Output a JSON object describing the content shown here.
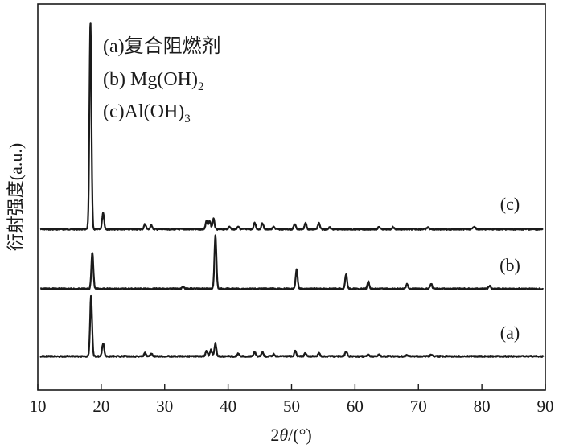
{
  "chart_data": {
    "type": "line",
    "xlabel": {
      "prefix": "2",
      "italic": "θ",
      "suffix": "/(°)"
    },
    "ylabel": "衍射强度(a.u.)",
    "xlim": [
      10,
      90
    ],
    "xticks": [
      "10",
      "20",
      "30",
      "40",
      "50",
      "60",
      "70",
      "80",
      "90"
    ],
    "y_ticks_shown": false,
    "grid": false,
    "legend_position": "top-left",
    "legend": [
      {
        "text": "(a)复合阻燃剂"
      },
      {
        "text": "(b) Mg(OH)",
        "sub": "2"
      },
      {
        "text": "(c)Al(OH)",
        "sub": "3"
      }
    ],
    "series": [
      {
        "name": "(c)",
        "baseline": 0.0,
        "peaks": [
          {
            "x": 18.3,
            "y": 1.0
          },
          {
            "x": 20.3,
            "y": 0.08
          },
          {
            "x": 26.9,
            "y": 0.025
          },
          {
            "x": 27.9,
            "y": 0.02
          },
          {
            "x": 36.6,
            "y": 0.04
          },
          {
            "x": 37.1,
            "y": 0.04
          },
          {
            "x": 37.7,
            "y": 0.05
          },
          {
            "x": 40.2,
            "y": 0.012
          },
          {
            "x": 41.6,
            "y": 0.015
          },
          {
            "x": 44.2,
            "y": 0.03
          },
          {
            "x": 45.4,
            "y": 0.03
          },
          {
            "x": 47.2,
            "y": 0.012
          },
          {
            "x": 50.5,
            "y": 0.025
          },
          {
            "x": 52.2,
            "y": 0.03
          },
          {
            "x": 54.3,
            "y": 0.03
          },
          {
            "x": 56.0,
            "y": 0.01
          },
          {
            "x": 63.8,
            "y": 0.012
          },
          {
            "x": 66.0,
            "y": 0.01
          },
          {
            "x": 71.5,
            "y": 0.01
          },
          {
            "x": 78.8,
            "y": 0.015
          }
        ]
      },
      {
        "name": "(b)",
        "baseline": 0.0,
        "peaks": [
          {
            "x": 18.6,
            "y": 0.15
          },
          {
            "x": 32.9,
            "y": 0.012
          },
          {
            "x": 38.0,
            "y": 0.22
          },
          {
            "x": 50.8,
            "y": 0.08
          },
          {
            "x": 58.6,
            "y": 0.06
          },
          {
            "x": 62.1,
            "y": 0.03
          },
          {
            "x": 68.2,
            "y": 0.02
          },
          {
            "x": 72.0,
            "y": 0.02
          },
          {
            "x": 81.2,
            "y": 0.012
          }
        ]
      },
      {
        "name": "(a)",
        "baseline": 0.0,
        "peaks": [
          {
            "x": 18.4,
            "y": 0.28
          },
          {
            "x": 20.3,
            "y": 0.06
          },
          {
            "x": 26.9,
            "y": 0.015
          },
          {
            "x": 27.9,
            "y": 0.012
          },
          {
            "x": 36.6,
            "y": 0.025
          },
          {
            "x": 37.3,
            "y": 0.03
          },
          {
            "x": 38.0,
            "y": 0.06
          },
          {
            "x": 41.6,
            "y": 0.012
          },
          {
            "x": 44.2,
            "y": 0.02
          },
          {
            "x": 45.4,
            "y": 0.02
          },
          {
            "x": 47.2,
            "y": 0.01
          },
          {
            "x": 50.6,
            "y": 0.025
          },
          {
            "x": 52.2,
            "y": 0.015
          },
          {
            "x": 54.3,
            "y": 0.015
          },
          {
            "x": 58.6,
            "y": 0.025
          },
          {
            "x": 62.1,
            "y": 0.01
          },
          {
            "x": 63.8,
            "y": 0.008
          },
          {
            "x": 68.2,
            "y": 0.006
          },
          {
            "x": 72.0,
            "y": 0.006
          }
        ]
      }
    ]
  }
}
